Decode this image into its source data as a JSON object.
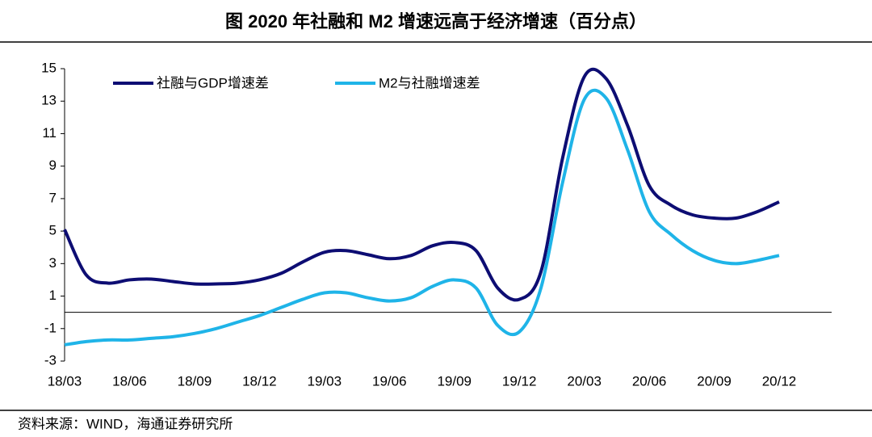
{
  "chart_data": {
    "type": "line",
    "title": "图  2020 年社融和 M2 增速远高于经济增速（百分点）",
    "source": "资料来源：WIND，海通证券研究所",
    "categories": [
      "18/03",
      null,
      null,
      "18/06",
      null,
      null,
      "18/09",
      null,
      null,
      "18/12",
      null,
      null,
      "19/03",
      null,
      null,
      "19/06",
      null,
      null,
      "19/09",
      null,
      null,
      "19/12",
      null,
      null,
      "20/03",
      null,
      null,
      "20/06",
      null,
      null,
      "20/09",
      null,
      null,
      "20/12"
    ],
    "series": [
      {
        "name": "社融与GDP增速差",
        "color": "#0d0d73",
        "values": [
          5.1,
          2.3,
          1.8,
          2.0,
          2.05,
          1.9,
          1.75,
          1.75,
          1.8,
          2.0,
          2.4,
          3.1,
          3.7,
          3.8,
          3.55,
          3.3,
          3.5,
          4.1,
          4.3,
          3.8,
          1.5,
          0.8,
          2.5,
          9.5,
          14.5,
          14.4,
          11.5,
          7.8,
          6.6,
          6.0,
          5.8,
          5.8,
          6.2,
          6.8
        ]
      },
      {
        "name": "M2与社融增速差",
        "color": "#1fb4e8",
        "values": [
          -2.0,
          -1.8,
          -1.7,
          -1.7,
          -1.6,
          -1.5,
          -1.3,
          -1.0,
          -0.6,
          -0.2,
          0.3,
          0.8,
          1.2,
          1.2,
          0.9,
          0.7,
          0.9,
          1.6,
          2.0,
          1.5,
          -0.8,
          -1.2,
          1.5,
          8.0,
          13.1,
          13.2,
          10.0,
          6.2,
          4.8,
          3.8,
          3.2,
          3.0,
          3.2,
          3.5
        ]
      }
    ],
    "ylim": [
      -3,
      15
    ],
    "yticks": [
      -3,
      -1,
      1,
      3,
      5,
      7,
      9,
      11,
      13,
      15
    ],
    "legend": "top-left"
  }
}
